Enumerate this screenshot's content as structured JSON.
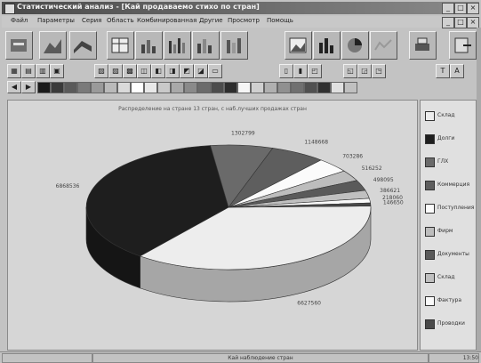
{
  "window": {
    "title": "Статистический анализ - [Кай продаваемо стихо по стран]",
    "buttons": [
      "_",
      "□",
      "×"
    ],
    "menu_buttons": [
      "_",
      "□",
      "×"
    ]
  },
  "menu": [
    "Файл",
    "Параметры",
    "Серия",
    "Область",
    "Комбинированная",
    "Другие",
    "Просмотр",
    "Помощь"
  ],
  "toolbar_large": [
    "Открыть",
    "Диаграмма 1",
    "Диаграмма 2",
    "Таблица",
    "Гистограмма",
    "Столбцы",
    "Столбцы 2",
    "Столбцы 3",
    "Изображение",
    "Гистограмма 2",
    "Круговая",
    "Линия",
    "Печать",
    "Выход"
  ],
  "toolbar_small": [
    "▦",
    "▤",
    "▥",
    "▣",
    "▧",
    "▨",
    "▩",
    "◫",
    "◧",
    "◨",
    "◩",
    "◪",
    "▭",
    "▯",
    "▮",
    "◰",
    "◱",
    "◲",
    "◳",
    "Т",
    "A"
  ],
  "palette": {
    "colors": [
      "#1a1a1a",
      "#3a3a3a",
      "#5a5a5a",
      "#7a7a7a",
      "#9a9a9a",
      "#bababa",
      "#dadada",
      "#ffffff",
      "#e8e8e8",
      "#c9c9c9",
      "#a9a9a9",
      "#8a8a8a",
      "#6b6b6b",
      "#4c4c4c",
      "#2d2d2d",
      "#f5f5f5",
      "#d0d0d0",
      "#b0b0b0",
      "#909090",
      "#707070",
      "#505050",
      "#303030",
      "#e0e0e0",
      "#c0c0c0"
    ]
  },
  "chart": {
    "title": "Распределение на стране 13 стран, с наб.лучших продажах стран"
  },
  "chart_data": {
    "type": "pie",
    "title": "Распределение на стране 13 стран, с наб.лучших продажах стран",
    "slices": [
      {
        "label": "Склад",
        "value": 6627560,
        "value_label": "6627560",
        "color": "#ededed"
      },
      {
        "label": "Долги",
        "value": 6868536,
        "value_label": "6868536",
        "color": "#1e1e1e"
      },
      {
        "label": "ГЛХ",
        "value": 1302799,
        "value_label": "1302799",
        "color": "#6a6a6a"
      },
      {
        "label": "Коммерция",
        "value": 1148668,
        "value_label": "1148668",
        "color": "#5e5e5e"
      },
      {
        "label": "Поступления",
        "value": 703286,
        "value_label": "703286",
        "color": "#fbfbfb"
      },
      {
        "label": "Фирм",
        "value": 516252,
        "value_label": "516252",
        "color": "#bdbdbd"
      },
      {
        "label": "Документы",
        "value": 498095,
        "value_label": "498095",
        "color": "#5a5a5a"
      },
      {
        "label": "Склад",
        "value": 386621,
        "value_label": "386621",
        "color": "#c0c0c0"
      },
      {
        "label": "Фактура",
        "value": 218060,
        "value_label": "218060",
        "color": "#fafafa"
      },
      {
        "label": "Проводки",
        "value": 146650,
        "value_label": "146650",
        "color": "#4a4a4a"
      }
    ]
  },
  "legend": [
    {
      "label": "Склад",
      "color": "#ededed"
    },
    {
      "label": "Долги",
      "color": "#1e1e1e"
    },
    {
      "label": "ГЛХ",
      "color": "#6a6a6a"
    },
    {
      "label": "Коммерция",
      "color": "#5e5e5e"
    },
    {
      "label": "Поступления",
      "color": "#fbfbfb"
    },
    {
      "label": "Фирм",
      "color": "#bdbdbd"
    },
    {
      "label": "Документы",
      "color": "#5a5a5a"
    },
    {
      "label": "Склад",
      "color": "#c0c0c0"
    },
    {
      "label": "Фактура",
      "color": "#fafafa"
    },
    {
      "label": "Проводки",
      "color": "#4a4a4a"
    }
  ],
  "status": {
    "left": "",
    "middle": "Кай наблюдение стран",
    "right": "13:50"
  }
}
